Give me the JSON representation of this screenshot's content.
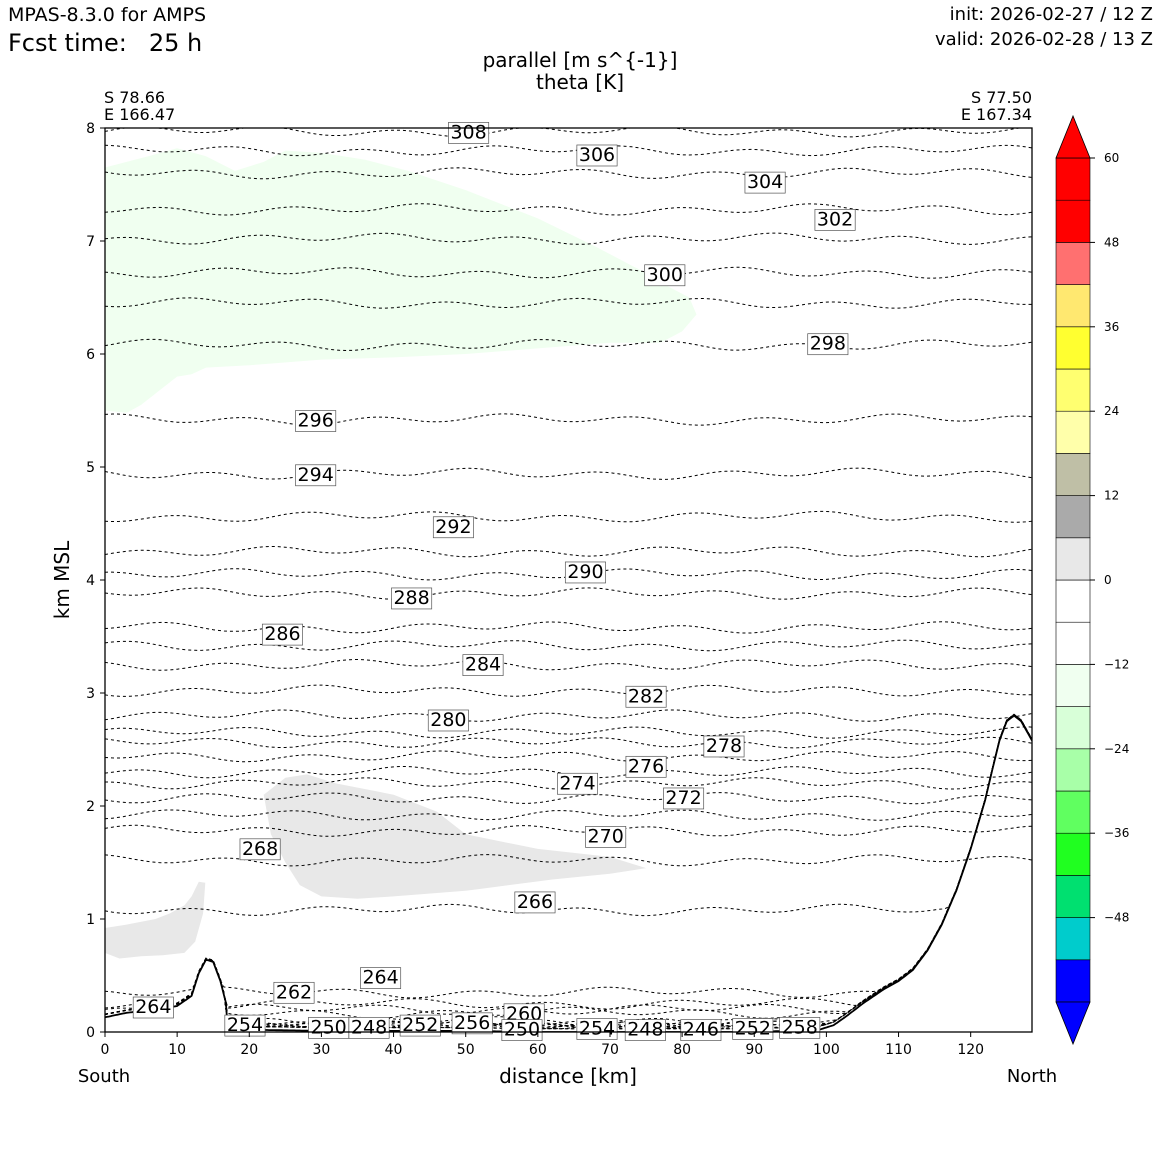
{
  "header": {
    "model": "MPAS-8.3.0 for AMPS",
    "fcst_label": "Fcst time:",
    "fcst_value": "25 h",
    "init": "init: 2026-02-27 / 12 Z",
    "valid": "valid: 2026-02-28 / 13 Z"
  },
  "endpoints": {
    "left_lat": "S 78.66",
    "left_lon": "E 166.47",
    "right_lat": "S 77.50",
    "right_lon": "E 167.34",
    "left_dir": "South",
    "right_dir": "North"
  },
  "chart_data": {
    "type": "cross-section",
    "title_lines": [
      "parallel [m s^{-1}]",
      "theta [K]"
    ],
    "xlabel": "distance [km]",
    "ylabel": "km MSL",
    "xlim": [
      0,
      128.5
    ],
    "ylim": [
      0,
      8
    ],
    "xticks": [
      0,
      10,
      20,
      30,
      40,
      50,
      60,
      70,
      80,
      90,
      100,
      110,
      120
    ],
    "yticks": [
      0,
      1,
      2,
      3,
      4,
      5,
      6,
      7,
      8
    ],
    "colorbar": {
      "ticks": [
        60,
        48,
        36,
        24,
        12,
        0,
        -12,
        -24,
        -36,
        -48
      ],
      "tick_labels": [
        "60",
        "48",
        "36",
        "24",
        "12",
        "0",
        "−12",
        "−24",
        "−36",
        "−48"
      ],
      "bounds": [
        -60,
        -54,
        -48,
        -42,
        -36,
        -30,
        -24,
        -18,
        -12,
        -6,
        0,
        6,
        12,
        18,
        24,
        30,
        36,
        42,
        48,
        54,
        60
      ],
      "colors": [
        "#0000ff",
        "#00cccc",
        "#00e070",
        "#20ff20",
        "#60ff60",
        "#a8ffa8",
        "#d8ffd8",
        "#f0fff0",
        "#ffffff",
        "#ffffff",
        "#e8e8e8",
        "#aaaaaa",
        "#bfbfa6",
        "#ffffaa",
        "#ffff70",
        "#ffff30",
        "#ffe870",
        "#ff7070",
        "#ff0000",
        "#ff0000"
      ],
      "under_color": "#0000ff",
      "over_color": "#ff0000"
    },
    "shaded_regions": [
      {
        "name": "negative-parallel-wind-upper",
        "value_range": [
          -12,
          -6
        ],
        "color": "#f0fff0",
        "points": [
          [
            0,
            7.65
          ],
          [
            3,
            7.7
          ],
          [
            6,
            7.75
          ],
          [
            10,
            7.82
          ],
          [
            14,
            7.75
          ],
          [
            18,
            7.62
          ],
          [
            22,
            7.7
          ],
          [
            25,
            7.8
          ],
          [
            30,
            7.78
          ],
          [
            36,
            7.72
          ],
          [
            42,
            7.62
          ],
          [
            50,
            7.45
          ],
          [
            60,
            7.2
          ],
          [
            68,
            6.95
          ],
          [
            74,
            6.75
          ],
          [
            78,
            6.6
          ],
          [
            81,
            6.5
          ],
          [
            82,
            6.35
          ],
          [
            80,
            6.2
          ],
          [
            77,
            6.1
          ],
          [
            74,
            6.1
          ],
          [
            70,
            6.1
          ],
          [
            60,
            6.05
          ],
          [
            50,
            6.0
          ],
          [
            40,
            5.97
          ],
          [
            30,
            5.95
          ],
          [
            20,
            5.9
          ],
          [
            14,
            5.88
          ],
          [
            12,
            5.82
          ],
          [
            10,
            5.8
          ],
          [
            8,
            5.7
          ],
          [
            5,
            5.55
          ],
          [
            3,
            5.48
          ],
          [
            0,
            5.5
          ]
        ]
      },
      {
        "name": "positive-parallel-wind-lower",
        "value_range": [
          6,
          12
        ],
        "color": "#e8e8e8",
        "points": [
          [
            22,
            2.1
          ],
          [
            25,
            2.25
          ],
          [
            28,
            2.28
          ],
          [
            32,
            2.2
          ],
          [
            40,
            2.1
          ],
          [
            46,
            1.95
          ],
          [
            50,
            1.75
          ],
          [
            60,
            1.62
          ],
          [
            70,
            1.55
          ],
          [
            75,
            1.45
          ],
          [
            70,
            1.4
          ],
          [
            62,
            1.35
          ],
          [
            50,
            1.25
          ],
          [
            40,
            1.2
          ],
          [
            35,
            1.18
          ],
          [
            30,
            1.2
          ],
          [
            27,
            1.3
          ],
          [
            25,
            1.5
          ],
          [
            23,
            1.75
          ]
        ]
      },
      {
        "name": "positive-parallel-wind-left",
        "value_range": [
          6,
          12
        ],
        "color": "#e8e8e8",
        "points": [
          [
            0,
            0.92
          ],
          [
            3,
            0.95
          ],
          [
            7,
            1.0
          ],
          [
            9,
            1.05
          ],
          [
            11,
            1.12
          ],
          [
            12,
            1.2
          ],
          [
            13,
            1.33
          ],
          [
            13.9,
            1.32
          ],
          [
            13.6,
            1.05
          ],
          [
            12.5,
            0.8
          ],
          [
            11,
            0.7
          ],
          [
            8,
            0.68
          ],
          [
            5,
            0.67
          ],
          [
            2,
            0.65
          ],
          [
            0,
            0.7
          ]
        ]
      }
    ],
    "terrain": {
      "x": [
        0,
        3,
        7,
        10,
        12,
        13,
        14,
        15,
        16,
        16.8,
        17,
        20,
        30,
        40,
        50,
        60,
        70,
        80,
        90,
        99,
        101,
        103,
        105,
        108,
        110,
        112,
        114,
        116,
        118,
        120,
        122,
        123,
        124,
        125,
        126,
        127,
        128.5
      ],
      "z": [
        0.13,
        0.17,
        0.2,
        0.23,
        0.32,
        0.52,
        0.64,
        0.62,
        0.45,
        0.25,
        0.05,
        0.02,
        0.01,
        0.01,
        0.01,
        0.0,
        0.0,
        0.0,
        0.0,
        0.02,
        0.06,
        0.15,
        0.25,
        0.38,
        0.45,
        0.55,
        0.72,
        0.95,
        1.25,
        1.62,
        2.05,
        2.32,
        2.58,
        2.75,
        2.8,
        2.75,
        2.58
      ]
    },
    "theta_isentropes": [
      {
        "label": "308",
        "level": 7.97,
        "label_x": 50.4,
        "label_y": 7.97
      },
      {
        "label": "306",
        "level": 7.8,
        "label_x": 68.2,
        "label_y": 7.77
      },
      {
        "label": "304",
        "level": 7.6,
        "label_x": 91.5,
        "label_y": 7.53
      },
      {
        "label": "302",
        "level": 7.28,
        "label_x": 101.2,
        "label_y": 7.2
      },
      {
        "label": "",
        "level": 7.02
      },
      {
        "label": "300",
        "level": 6.72,
        "label_x": 77.6,
        "label_y": 6.71
      },
      {
        "label": "",
        "level": 6.45
      },
      {
        "label": "298",
        "level": 6.08,
        "label_x": 100.2,
        "label_y": 6.1
      },
      {
        "label": "296",
        "level": 5.42,
        "label_x": 29.2,
        "label_y": 5.42
      },
      {
        "label": "294",
        "level": 4.94,
        "label_x": 29.2,
        "label_y": 4.94
      },
      {
        "label": "292",
        "level": 4.56,
        "label_x": 48.3,
        "label_y": 4.48
      },
      {
        "label": "",
        "level": 4.25
      },
      {
        "label": "290",
        "level": 4.05,
        "label_x": 66.6,
        "label_y": 4.08
      },
      {
        "label": "288",
        "level": 3.88,
        "label_x": 42.5,
        "label_y": 3.85
      },
      {
        "label": "286",
        "level": 3.58,
        "label_x": 24.6,
        "label_y": 3.53
      },
      {
        "label": "",
        "level": 3.42
      },
      {
        "label": "284",
        "level": 3.25,
        "label_x": 52.4,
        "label_y": 3.26
      },
      {
        "label": "282",
        "level": 3.02,
        "label_x": 75.0,
        "label_y": 2.98
      },
      {
        "label": "280",
        "level": 2.8,
        "label_x": 47.6,
        "label_y": 2.77
      },
      {
        "label": "",
        "level": 2.65
      },
      {
        "label": "278",
        "level": 2.56,
        "label_x": 85.8,
        "label_y": 2.54
      },
      {
        "label": "276",
        "level": 2.44,
        "label_x": 75.0,
        "label_y": 2.36
      },
      {
        "label": "",
        "level": 2.3
      },
      {
        "label": "274",
        "level": 2.2,
        "label_x": 65.5,
        "label_y": 2.21
      },
      {
        "label": "272",
        "level": 2.07,
        "label_x": 80.2,
        "label_y": 2.08
      },
      {
        "label": "",
        "level": 1.92
      },
      {
        "label": "270",
        "level": 1.78,
        "label_x": 69.4,
        "label_y": 1.74
      },
      {
        "label": "268",
        "level": 1.52,
        "label_x": 21.5,
        "label_y": 1.63
      },
      {
        "label": "266",
        "level": 1.08,
        "label_x": 59.6,
        "label_y": 1.16
      },
      {
        "label": "264",
        "level": 0.25,
        "label_x": 38.2,
        "label_y": 0.49
      },
      {
        "label": "264",
        "level": 0.2,
        "label_x": 6.7,
        "label_y": 0.23
      },
      {
        "label": "262",
        "level": 0.35,
        "label_x": 26.2,
        "label_y": 0.36
      },
      {
        "label": "260",
        "level": 0.17,
        "label_x": 58.1,
        "label_y": 0.17
      },
      {
        "label": "258",
        "level": 0.06,
        "label_x": 96.3,
        "label_y": 0.05
      },
      {
        "label": "256",
        "level": 0.09,
        "label_x": 50.9,
        "label_y": 0.09
      },
      {
        "label": "254",
        "level": 0.07,
        "label_x": 19.4,
        "label_y": 0.07
      },
      {
        "label": "254",
        "level": 0.04,
        "label_x": 68.2,
        "label_y": 0.04
      },
      {
        "label": "252",
        "level": 0.07,
        "label_x": 43.7,
        "label_y": 0.07
      },
      {
        "label": "252",
        "level": 0.04,
        "label_x": 89.8,
        "label_y": 0.04
      },
      {
        "label": "250",
        "level": 0.05,
        "label_x": 31.0,
        "label_y": 0.05
      },
      {
        "label": "250",
        "level": 0.03,
        "label_x": 57.8,
        "label_y": 0.03
      },
      {
        "label": "248",
        "level": 0.05,
        "label_x": 36.6,
        "label_y": 0.05
      },
      {
        "label": "248",
        "level": 0.03,
        "label_x": 74.9,
        "label_y": 0.03
      },
      {
        "label": "246",
        "level": 0.03,
        "label_x": 82.6,
        "label_y": 0.03
      }
    ]
  }
}
